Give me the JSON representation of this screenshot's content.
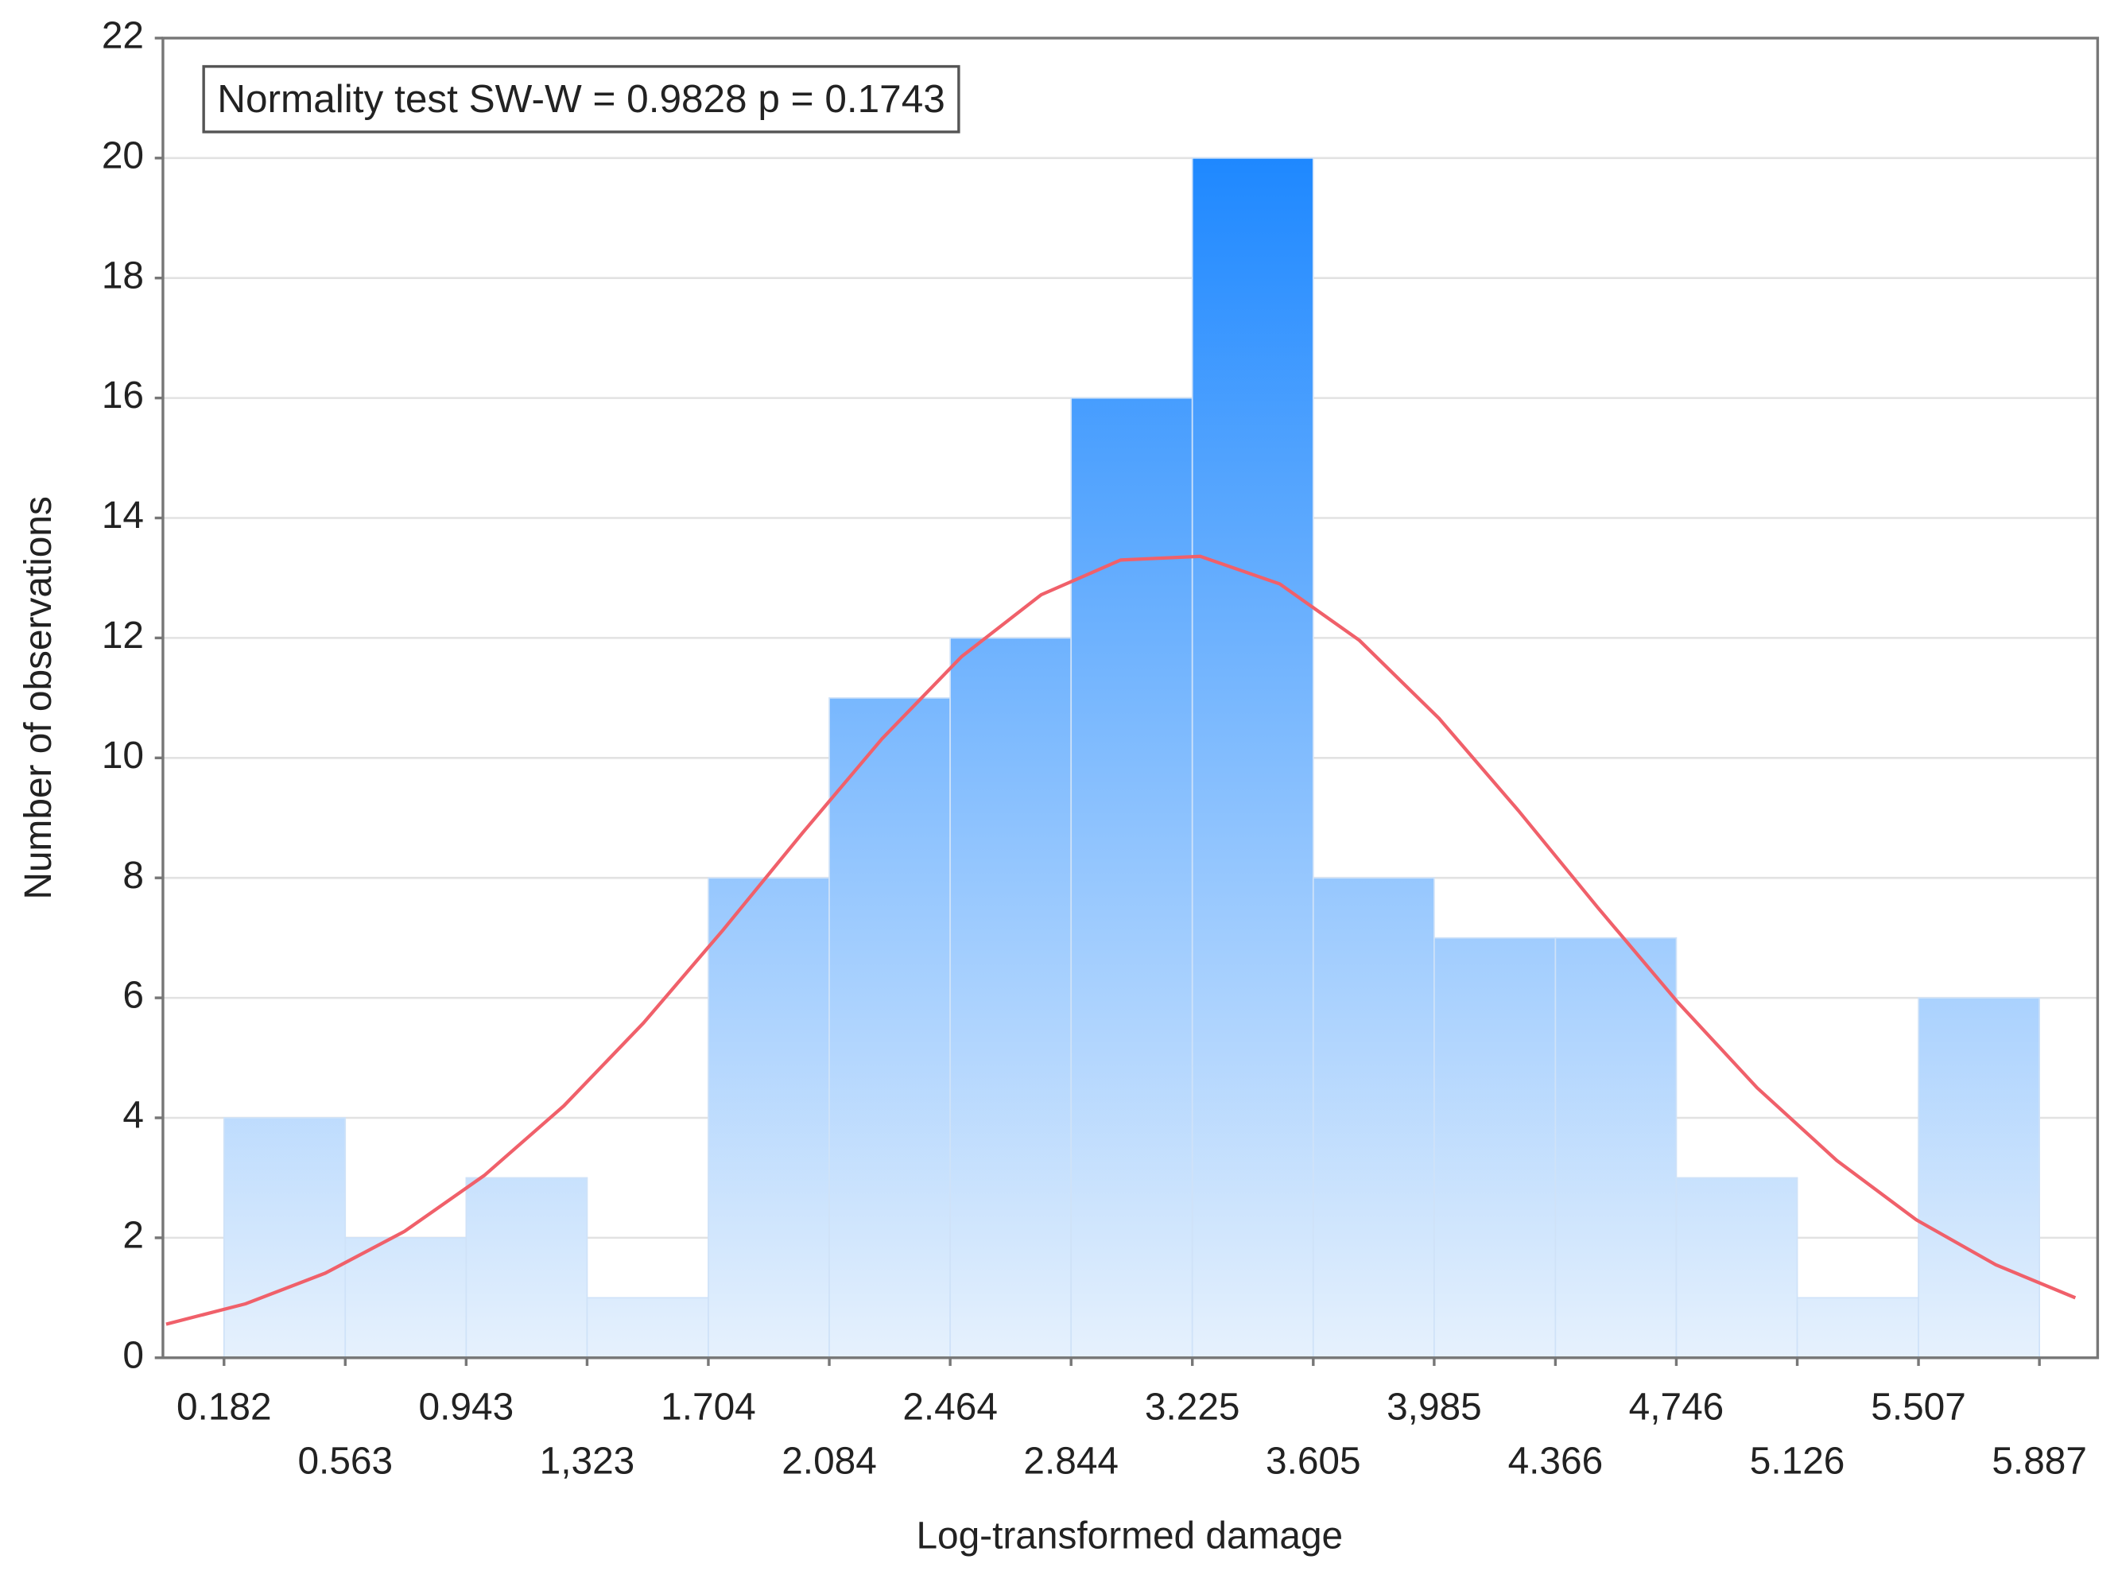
{
  "chart_data": {
    "type": "histogram",
    "x_label": "Log-transformed damage",
    "y_label": "Number of observations",
    "annotation": "Normality test SW-W = 0.9828 p = 0.1743",
    "bins": [
      0.182,
      0.563,
      0.943,
      1.323,
      1.704,
      2.084,
      2.464,
      2.844,
      3.225,
      3.605,
      3.985,
      4.366,
      4.746,
      5.126,
      5.507,
      5.887
    ],
    "counts": [
      4,
      2,
      3,
      1,
      8,
      11,
      12,
      16,
      20,
      8,
      7,
      7,
      3,
      1,
      6
    ],
    "color": "#1e88ff",
    "curve": {
      "color": "#f0606a",
      "x": [
        0,
        0.25,
        0.5,
        0.75,
        1,
        1.25,
        1.5,
        1.75,
        2,
        2.25,
        2.5,
        2.75,
        3,
        3.25,
        3.5,
        3.75,
        4,
        4.25,
        4.5,
        4.75,
        5,
        5.25,
        5.5,
        5.75,
        6
      ],
      "values": [
        0.56,
        0.9,
        1.41,
        2.11,
        3.04,
        4.2,
        5.58,
        7.13,
        8.75,
        10.32,
        11.69,
        12.72,
        13.3,
        13.36,
        12.9,
        11.96,
        10.66,
        9.12,
        7.5,
        5.93,
        4.5,
        3.29,
        2.3,
        1.55,
        1.0
      ]
    },
    "xlim": [
      -0.01,
      6.07
    ],
    "xticks": [
      0.182,
      0.563,
      0.943,
      {
        "value": 1.323,
        "label": "1,323"
      },
      1.704,
      2.084,
      2.464,
      2.844,
      3.225,
      3.605,
      {
        "value": 3.985,
        "label": "3,985"
      },
      4.366,
      {
        "value": 4.746,
        "label": "4,746"
      },
      5.126,
      5.507,
      5.887
    ],
    "ylim": [
      0,
      22
    ],
    "yticks": [
      0,
      2,
      4,
      6,
      8,
      10,
      12,
      14,
      16,
      18,
      20,
      22
    ],
    "grid": true
  }
}
